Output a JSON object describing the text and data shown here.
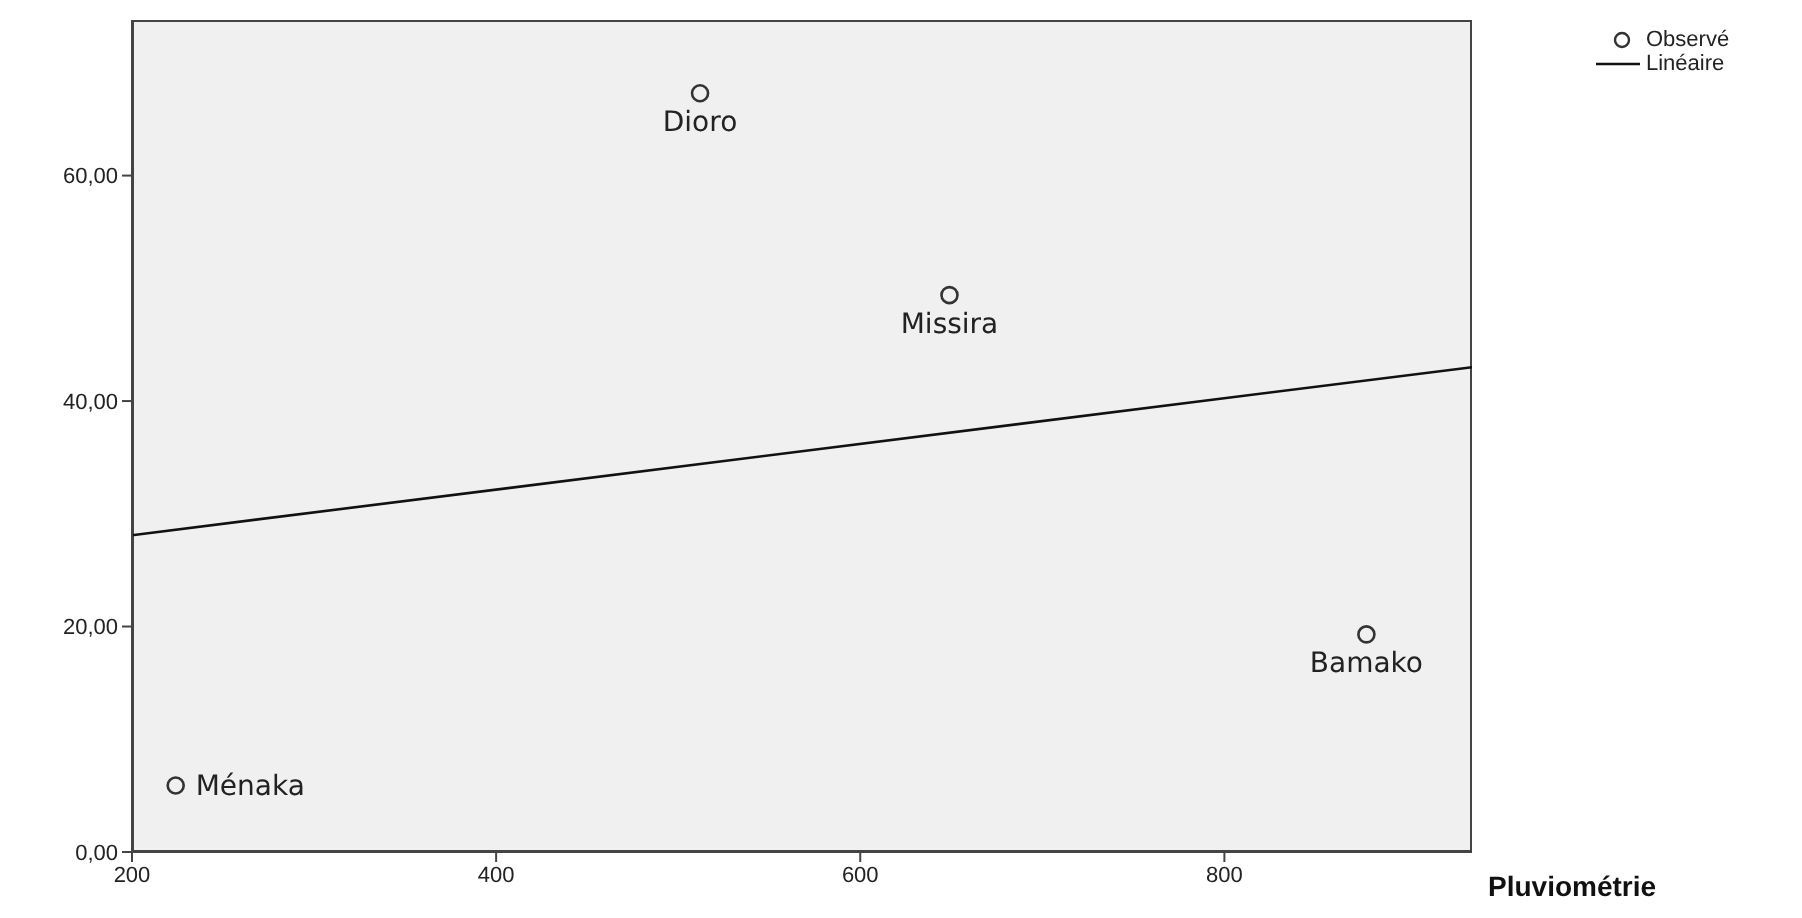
{
  "chart_data": {
    "type": "scatter",
    "xlabel": "Pluviométrie",
    "xlim": [
      200,
      936
    ],
    "xticks": [
      200,
      400,
      600,
      800
    ],
    "ylim": [
      0,
      73.8
    ],
    "yticks": [
      {
        "value": 0,
        "label": "0,00"
      },
      {
        "value": 20,
        "label": "20,00"
      },
      {
        "value": 40,
        "label": "40,00"
      },
      {
        "value": 60,
        "label": "60,00"
      }
    ],
    "series": [
      {
        "name": "Observé",
        "color": "#333333",
        "marker": "circle",
        "x": [
          224,
          512,
          649,
          878
        ],
        "values": [
          5.9,
          67.3,
          49.4,
          19.3
        ]
      },
      {
        "name": "Linéaire",
        "type": "line",
        "color": "#111111",
        "x": [
          200,
          936
        ],
        "values": [
          28.1,
          43.0
        ]
      }
    ],
    "annotations": [
      {
        "text": "Ménaka",
        "x": 224,
        "y": 5.9
      },
      {
        "text": "Dioro",
        "x": 512,
        "y": 67.3
      },
      {
        "text": "Missira",
        "x": 649,
        "y": 49.4
      },
      {
        "text": "Bamako",
        "x": 878,
        "y": 19.3
      }
    ],
    "grid": false,
    "legend": "top right"
  }
}
